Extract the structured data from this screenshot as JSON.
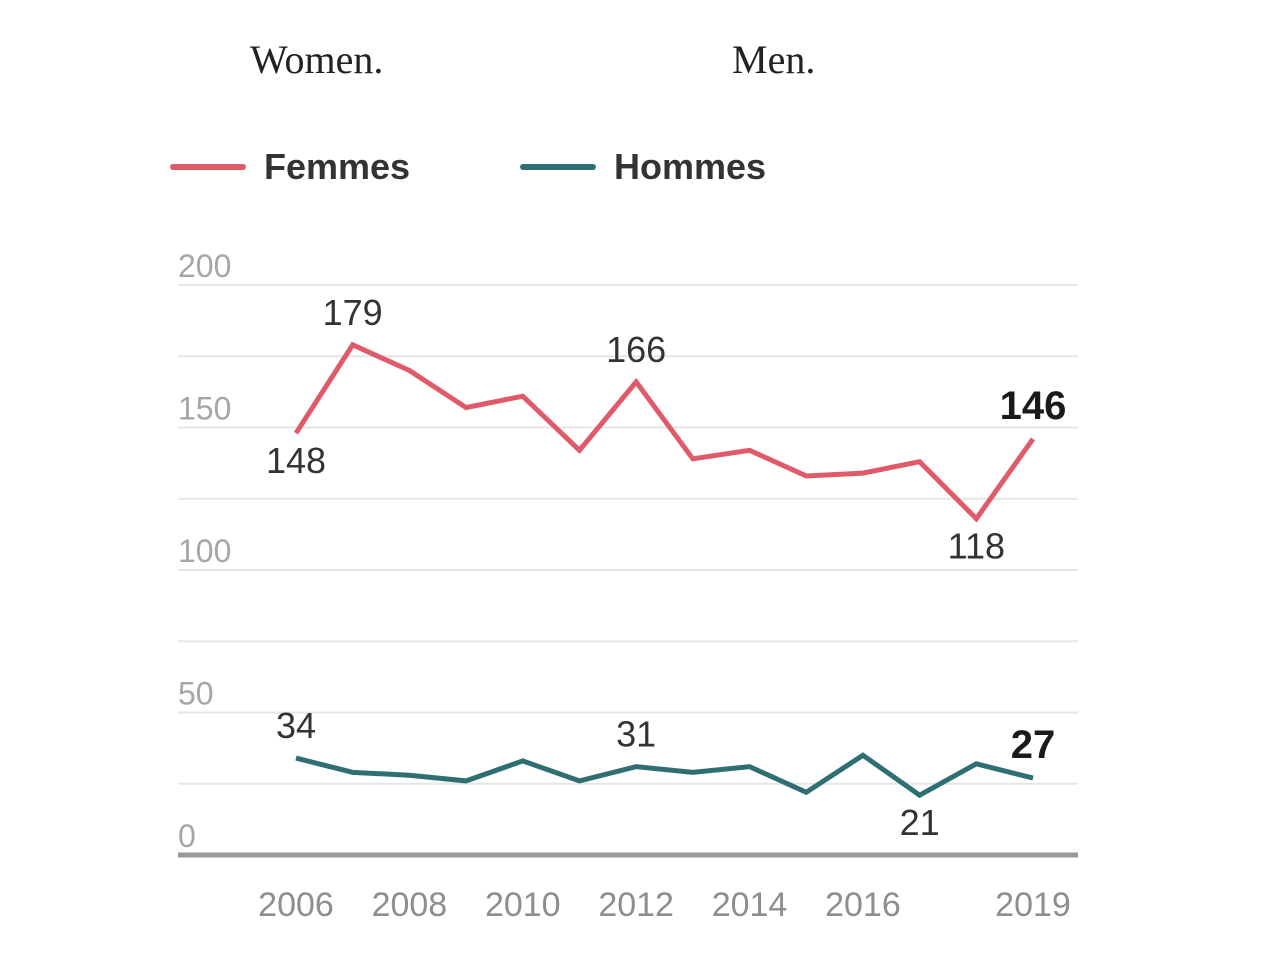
{
  "captions": {
    "women": "Women.",
    "men": "Men."
  },
  "colors": {
    "femmes": "#e05a6a",
    "hommes": "#2f6f73",
    "grid": "#e6e6e6",
    "baseline": "#999999"
  },
  "chart_data": {
    "type": "line",
    "x": [
      2006,
      2007,
      2008,
      2009,
      2010,
      2011,
      2012,
      2013,
      2014,
      2015,
      2016,
      2017,
      2018,
      2019
    ],
    "series": [
      {
        "name": "Femmes",
        "color": "#e05a6a",
        "values": [
          148,
          179,
          170,
          157,
          161,
          142,
          166,
          139,
          142,
          133,
          134,
          138,
          118,
          146
        ]
      },
      {
        "name": "Hommes",
        "color": "#2f6f73",
        "values": [
          34,
          29,
          28,
          26,
          33,
          26,
          31,
          29,
          31,
          22,
          35,
          21,
          32,
          27
        ]
      }
    ],
    "xticks": [
      2006,
      2008,
      2010,
      2012,
      2014,
      2016,
      2019
    ],
    "yticks": [
      0,
      50,
      100,
      150,
      200
    ],
    "ylim": [
      0,
      200
    ],
    "xlim": [
      2006,
      2019
    ],
    "grid": true,
    "legend_position": "top-left",
    "annotations": [
      {
        "series": 0,
        "x": 2006,
        "text": "148",
        "pos": "below"
      },
      {
        "series": 0,
        "x": 2007,
        "text": "179",
        "pos": "above"
      },
      {
        "series": 0,
        "x": 2012,
        "text": "166",
        "pos": "above"
      },
      {
        "series": 0,
        "x": 2018,
        "text": "118",
        "pos": "below"
      },
      {
        "series": 0,
        "x": 2019,
        "text": "146",
        "pos": "above",
        "bold": true
      },
      {
        "series": 1,
        "x": 2006,
        "text": "34",
        "pos": "above"
      },
      {
        "series": 1,
        "x": 2012,
        "text": "31",
        "pos": "above"
      },
      {
        "series": 1,
        "x": 2017,
        "text": "21",
        "pos": "below"
      },
      {
        "series": 1,
        "x": 2019,
        "text": "27",
        "pos": "above",
        "bold": true
      }
    ]
  }
}
